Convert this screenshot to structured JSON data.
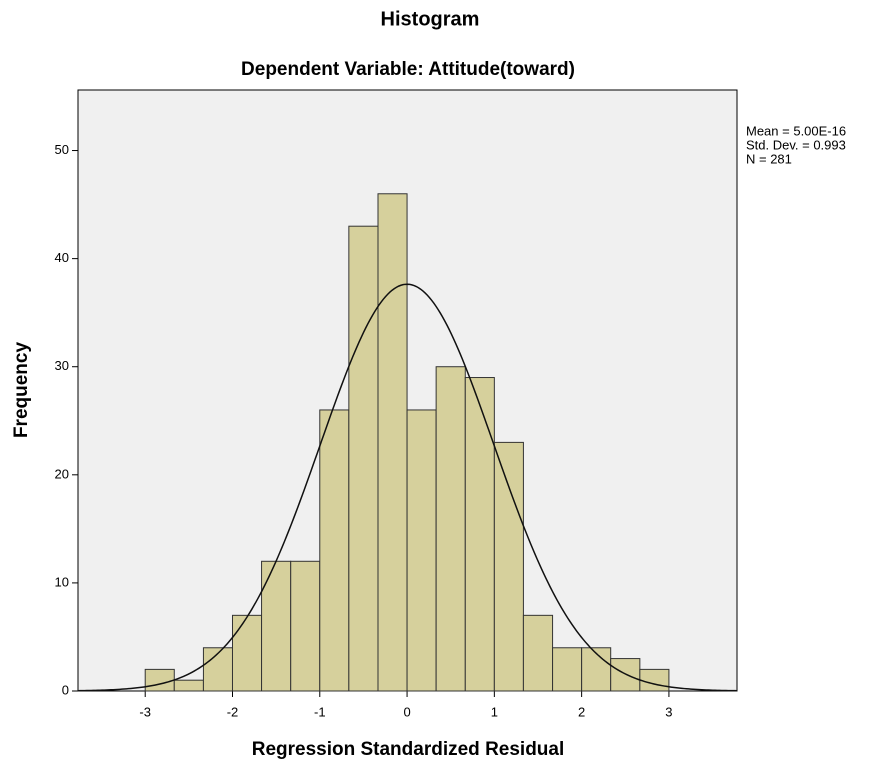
{
  "chart_data": {
    "type": "histogram",
    "title": "Histogram",
    "subtitle": "Dependent Variable: Attitude(toward)",
    "x_label": "Regression Standardized Residual",
    "y_label": "Frequency",
    "bins": [
      -3,
      -2.667,
      -2.333,
      -2,
      -1.667,
      -1.333,
      -1,
      -0.667,
      -0.333,
      0,
      0.333,
      0.667,
      1,
      1.333,
      1.667,
      2,
      2.333,
      2.667,
      3
    ],
    "values": [
      2,
      1,
      4,
      7,
      12,
      12,
      26,
      43,
      46,
      26,
      30,
      29,
      23,
      7,
      4,
      4,
      3,
      2
    ],
    "color": "#d6d09c",
    "xlim": [
      -3.77,
      3.78
    ],
    "xticks": [
      -3,
      -2,
      -1,
      0,
      1,
      2,
      3
    ],
    "ylim": [
      0,
      55.6
    ],
    "yticks": [
      0,
      10,
      20,
      30,
      40,
      50
    ],
    "normal_curve": {
      "mean": 5e-16,
      "std_dev": 0.993,
      "n": 281
    },
    "annotations": [
      "Mean = 5.00E-16",
      "Std. Dev. = 0.993",
      "N = 281"
    ]
  }
}
